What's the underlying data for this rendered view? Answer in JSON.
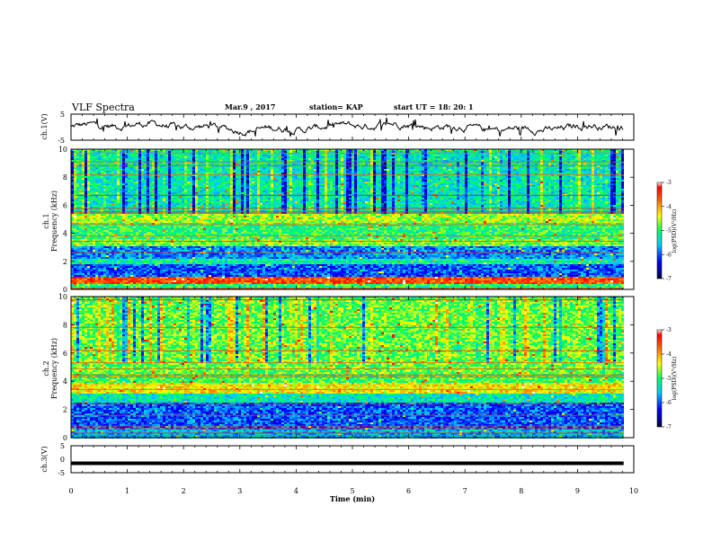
{
  "header": {
    "title": "VLF Spectra",
    "date": "Mar.9  , 2017",
    "station": "station= KAP",
    "start": "start  UT  =   18: 20: 1"
  },
  "chart_data": [
    {
      "type": "line",
      "name": "ch1-waveform",
      "ylabel": "ch.1(V)",
      "ylim": [
        -5,
        5
      ],
      "yticks": [
        "5",
        "-5"
      ],
      "xlim": [
        0,
        10
      ],
      "x_end_min": 9.82,
      "series": [
        {
          "values_hint": "noisy trace around 0 V, amplitude about ±2.5 V"
        }
      ]
    },
    {
      "type": "heatmap",
      "name": "ch1-spectrogram",
      "ylabel": "ch.1\nFrequency  (kHz)",
      "ylim": [
        0,
        10
      ],
      "yticks": [
        "0",
        "2",
        "4",
        "6",
        "8",
        "10"
      ],
      "xlim": [
        0,
        10
      ],
      "x_end_min": 9.82,
      "colorbar": {
        "label": "log(PSD)(V²/Hz)",
        "range": [
          -7,
          -3
        ],
        "ticks": [
          "-3",
          "-4",
          "-5",
          "-6",
          "-7"
        ]
      },
      "bands": [
        {
          "from": 0.0,
          "to": 0.5,
          "level": -5.0
        },
        {
          "from": 0.5,
          "to": 1.0,
          "level": -3.6
        },
        {
          "from": 1.0,
          "to": 1.8,
          "level": -6.0
        },
        {
          "from": 1.8,
          "to": 2.3,
          "level": -5.2
        },
        {
          "from": 2.3,
          "to": 3.2,
          "level": -5.8
        },
        {
          "from": 3.2,
          "to": 3.7,
          "level": -4.7
        },
        {
          "from": 3.7,
          "to": 4.8,
          "level": -5.0
        },
        {
          "from": 4.8,
          "to": 5.4,
          "level": -4.6
        },
        {
          "from": 5.4,
          "to": 10.0,
          "level": -5.3
        }
      ]
    },
    {
      "type": "heatmap",
      "name": "ch2-spectrogram",
      "ylabel": "ch.2\nFrequency  (kHz)",
      "ylim": [
        0,
        10
      ],
      "yticks": [
        "0",
        "2",
        "4",
        "6",
        "8",
        "10"
      ],
      "xlim": [
        0,
        10
      ],
      "x_end_min": 9.82,
      "colorbar": {
        "label": "log(PSD)(V²/Hz)",
        "range": [
          -7,
          -3
        ],
        "ticks": [
          "-3",
          "-4",
          "-5",
          "-6",
          "-7"
        ]
      },
      "bands": [
        {
          "from": 0.0,
          "to": 0.7,
          "level": -5.6
        },
        {
          "from": 0.7,
          "to": 2.5,
          "level": -6.0
        },
        {
          "from": 2.5,
          "to": 3.2,
          "level": -5.3
        },
        {
          "from": 3.2,
          "to": 3.9,
          "level": -4.3
        },
        {
          "from": 3.9,
          "to": 4.6,
          "level": -4.9
        },
        {
          "from": 4.6,
          "to": 10.0,
          "level": -4.8
        }
      ]
    },
    {
      "type": "line",
      "name": "ch3-waveform",
      "ylabel": "ch.3(V)",
      "ylim": [
        -5,
        5
      ],
      "yticks": [
        "5",
        "0",
        "-5"
      ],
      "xlim": [
        0,
        10
      ],
      "x_end_min": 9.82,
      "series": [
        {
          "values_hint": "flat thick line at about -1.5 V"
        }
      ]
    }
  ],
  "x_axis": {
    "label": "Time  (min)",
    "ticks": [
      "0",
      "1",
      "2",
      "3",
      "4",
      "5",
      "6",
      "7",
      "8",
      "9",
      "10"
    ]
  }
}
